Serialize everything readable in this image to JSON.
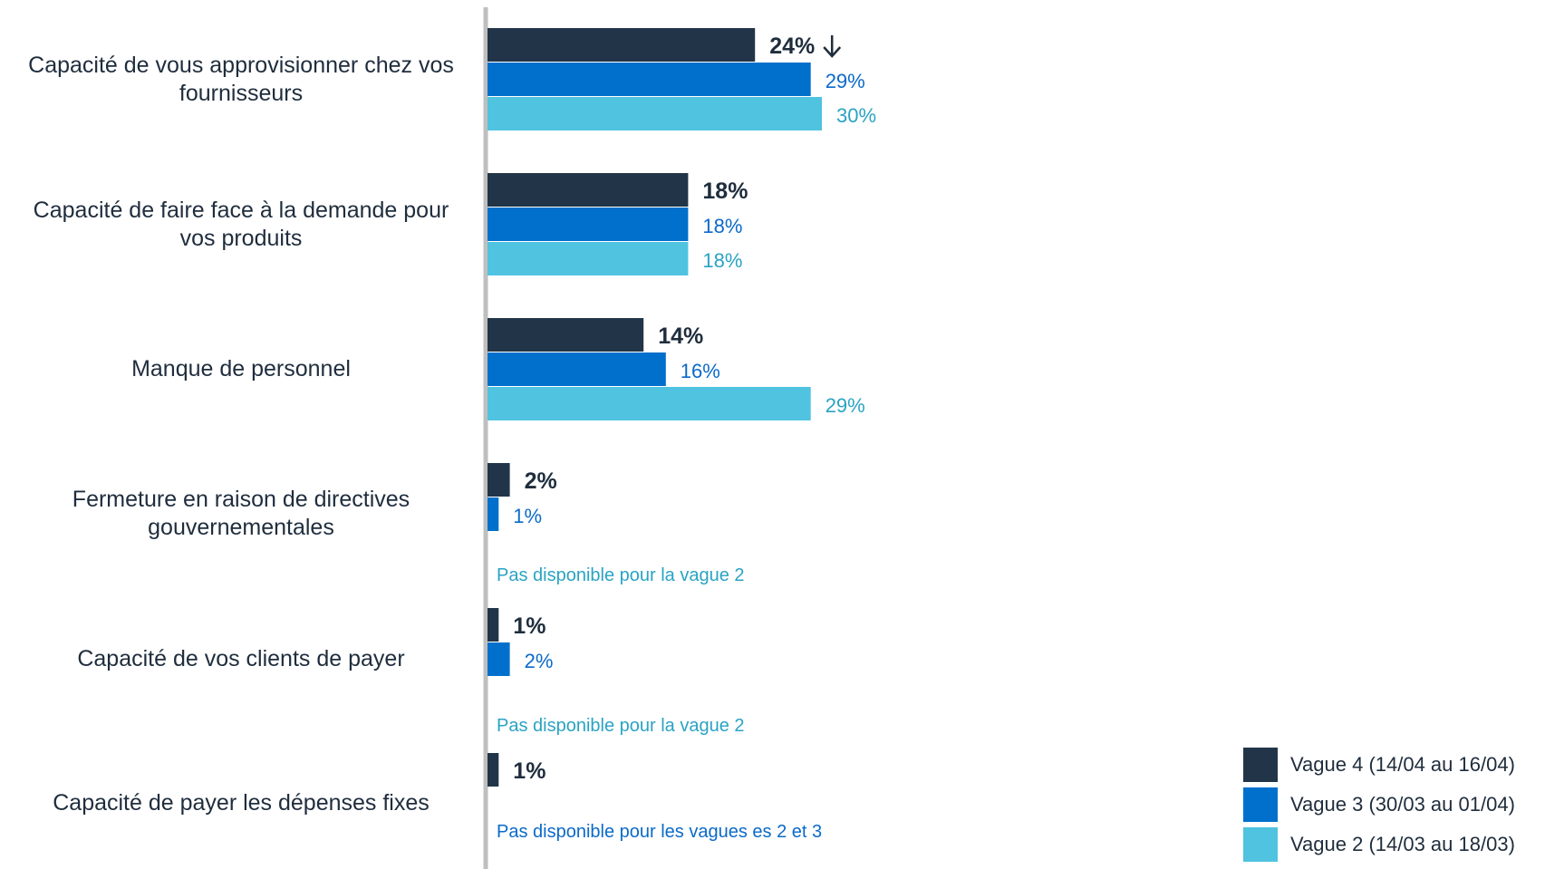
{
  "colors": {
    "wave4": "#223548",
    "wave3": "#0070cc",
    "wave2": "#4fc3e0",
    "axis": "#bfbfbf",
    "label_wave4": "#1f2d3d",
    "label_wave3": "#0a6ac9",
    "label_wave2": "#2aa3c3",
    "note": "#2aa3c3",
    "note_both": "#0a6ac9"
  },
  "legend": [
    {
      "label": "Vague 4 (14/04 au 16/04)",
      "color": "#223548"
    },
    {
      "label": "Vague 3 (30/03 au 01/04)",
      "color": "#0070cc"
    },
    {
      "label": "Vague 2 (14/03 au 18/03)",
      "color": "#4fc3e0"
    }
  ],
  "chart_data": {
    "type": "bar",
    "orientation": "horizontal",
    "title": "",
    "xlabel": "",
    "ylabel": "",
    "xlim": [
      0,
      30
    ],
    "grid": false,
    "legend_position": "bottom-right",
    "categories": [
      "Capacité de vous approvisionner chez vos fournisseurs",
      "Capacité de faire face à la demande pour vos produits",
      "Manque de personnel",
      "Fermeture en raison de directives gouvernementales",
      "Capacité de vos clients de payer",
      "Capacité de payer les dépenses fixes"
    ],
    "series": [
      {
        "name": "Vague 4 (14/04 au 16/04)",
        "values": [
          24,
          18,
          14,
          2,
          1,
          1
        ],
        "labels": [
          "24%",
          "18%",
          "14%",
          "2%",
          "1%",
          "1%"
        ]
      },
      {
        "name": "Vague 3 (30/03 au 01/04)",
        "values": [
          29,
          18,
          16,
          1,
          2,
          null
        ],
        "labels": [
          "29%",
          "18%",
          "16%",
          "1%",
          "2%",
          ""
        ]
      },
      {
        "name": "Vague 2 (14/03 au 18/03)",
        "values": [
          30,
          18,
          29,
          null,
          null,
          null
        ],
        "labels": [
          "30%",
          "18%",
          "29%",
          "",
          "",
          ""
        ]
      }
    ],
    "annotations": [
      {
        "category_index": 0,
        "series_index": 0,
        "marker": "down-arrow-icon"
      },
      {
        "category_index": 3,
        "text": "Pas disponible pour la vague 2"
      },
      {
        "category_index": 4,
        "text": "Pas disponible pour la vague 2"
      },
      {
        "category_index": 5,
        "text": "Pas disponible pour les vagues es 2 et 3"
      }
    ]
  }
}
